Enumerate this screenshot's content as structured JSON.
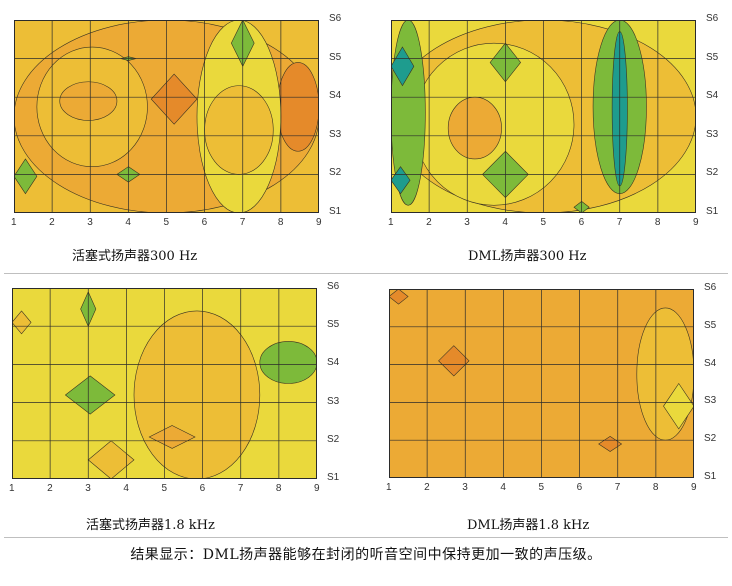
{
  "colors": {
    "orange": "#E58A2A",
    "orange_yellow": "#ECAA35",
    "yellow_orange": "#EDBE36",
    "yellow": "#EAD93C",
    "green": "#7DBA3A",
    "teal": "#1E9C8E",
    "line": "#3a3322"
  },
  "chart_data": [
    {
      "type": "heatmap",
      "id": "piston300",
      "caption": "活塞式扬声器300 Hz",
      "x_ticks": [
        "1",
        "2",
        "3",
        "4",
        "5",
        "6",
        "7",
        "8",
        "9"
      ],
      "y_ticks": [
        "S1",
        "S2",
        "S3",
        "S4",
        "S5",
        "S6"
      ],
      "base_level": "yellow_orange",
      "regions": [
        {
          "level": "orange_yellow",
          "x": [
            1,
            9
          ],
          "y": [
            1,
            6
          ]
        },
        {
          "level": "yellow_orange",
          "x": [
            1.6,
            4.5
          ],
          "y": [
            2.2,
            5.3
          ]
        },
        {
          "level": "orange_yellow",
          "x": [
            2.2,
            3.7
          ],
          "y": [
            3.4,
            4.4
          ]
        },
        {
          "level": "orange",
          "x": [
            4.6,
            5.8
          ],
          "y": [
            3.3,
            4.6
          ]
        },
        {
          "level": "orange",
          "x": [
            7.9,
            9
          ],
          "y": [
            2.6,
            4.9
          ]
        },
        {
          "level": "yellow",
          "x": [
            5.8,
            8.0
          ],
          "y": [
            1,
            6
          ]
        },
        {
          "level": "yellow_orange",
          "x": [
            6.0,
            7.8
          ],
          "y": [
            2.0,
            4.3
          ]
        },
        {
          "level": "green",
          "x": [
            6.7,
            7.3
          ],
          "y": [
            4.8,
            6
          ]
        },
        {
          "level": "green",
          "x": [
            1,
            1.6
          ],
          "y": [
            1.5,
            2.4
          ]
        },
        {
          "level": "green",
          "x": [
            3.7,
            4.3
          ],
          "y": [
            1.8,
            2.2
          ]
        },
        {
          "level": "green",
          "x": [
            3.8,
            4.2
          ],
          "y": [
            4.95,
            5.05
          ]
        }
      ]
    },
    {
      "type": "heatmap",
      "id": "dml300",
      "caption": "DML扬声器300 Hz",
      "x_ticks": [
        "1",
        "2",
        "3",
        "4",
        "5",
        "6",
        "7",
        "8",
        "9"
      ],
      "y_ticks": [
        "S1",
        "S2",
        "S3",
        "S4",
        "S5",
        "S6"
      ],
      "base_level": "yellow",
      "regions": [
        {
          "level": "yellow_orange",
          "x": [
            1,
            9
          ],
          "y": [
            1,
            6
          ]
        },
        {
          "level": "yellow",
          "x": [
            1.6,
            5.8
          ],
          "y": [
            1.2,
            5.4
          ]
        },
        {
          "level": "orange_yellow",
          "x": [
            2.5,
            3.9
          ],
          "y": [
            2.4,
            4.0
          ]
        },
        {
          "level": "green",
          "x": [
            1,
            1.9
          ],
          "y": [
            1.2,
            6
          ]
        },
        {
          "level": "teal",
          "x": [
            1,
            1.6
          ],
          "y": [
            4.3,
            5.3
          ]
        },
        {
          "level": "teal",
          "x": [
            1,
            1.5
          ],
          "y": [
            1.5,
            2.2
          ]
        },
        {
          "level": "green",
          "x": [
            3.6,
            4.4
          ],
          "y": [
            4.4,
            5.4
          ]
        },
        {
          "level": "green",
          "x": [
            3.4,
            4.6
          ],
          "y": [
            1.4,
            2.6
          ]
        },
        {
          "level": "green",
          "x": [
            6.3,
            7.7
          ],
          "y": [
            1.5,
            6
          ]
        },
        {
          "level": "teal",
          "x": [
            6.8,
            7.2
          ],
          "y": [
            1.7,
            5.7
          ]
        },
        {
          "level": "green",
          "x": [
            5.8,
            6.2
          ],
          "y": [
            1,
            1.3
          ]
        }
      ]
    },
    {
      "type": "heatmap",
      "id": "piston1800",
      "caption": "活塞式扬声器1.8 kHz",
      "x_ticks": [
        "1",
        "2",
        "3",
        "4",
        "5",
        "6",
        "7",
        "8",
        "9"
      ],
      "y_ticks": [
        "S1",
        "S2",
        "S3",
        "S4",
        "S5",
        "S6"
      ],
      "base_level": "yellow",
      "regions": [
        {
          "level": "yellow_orange",
          "x": [
            4.2,
            7.5
          ],
          "y": [
            1,
            5.4
          ]
        },
        {
          "level": "yellow_orange",
          "x": [
            3,
            4.2
          ],
          "y": [
            1,
            2
          ]
        },
        {
          "level": "yellow_orange",
          "x": [
            1,
            1.5
          ],
          "y": [
            4.8,
            5.4
          ]
        },
        {
          "level": "orange_yellow",
          "x": [
            4.6,
            5.8
          ],
          "y": [
            1.8,
            2.4
          ]
        },
        {
          "level": "green",
          "x": [
            2.4,
            3.7
          ],
          "y": [
            2.7,
            3.7
          ]
        },
        {
          "level": "green",
          "x": [
            7.5,
            9
          ],
          "y": [
            3.5,
            4.6
          ]
        },
        {
          "level": "green",
          "x": [
            2.8,
            3.2
          ],
          "y": [
            5.0,
            5.9
          ]
        }
      ]
    },
    {
      "type": "heatmap",
      "id": "dml1800",
      "caption": "DML扬声器1.8 kHz",
      "x_ticks": [
        "1",
        "2",
        "3",
        "4",
        "5",
        "6",
        "7",
        "8",
        "9"
      ],
      "y_ticks": [
        "S1",
        "S2",
        "S3",
        "S4",
        "S5",
        "S6"
      ],
      "base_level": "orange_yellow",
      "regions": [
        {
          "level": "yellow_orange",
          "x": [
            7.5,
            9
          ],
          "y": [
            2,
            5.5
          ]
        },
        {
          "level": "yellow",
          "x": [
            8.2,
            9
          ],
          "y": [
            2.3,
            3.5
          ]
        },
        {
          "level": "orange",
          "x": [
            2.3,
            3.1
          ],
          "y": [
            3.7,
            4.5
          ]
        },
        {
          "level": "orange",
          "x": [
            1,
            1.5
          ],
          "y": [
            5.6,
            6
          ]
        },
        {
          "level": "orange",
          "x": [
            6.5,
            7.1
          ],
          "y": [
            1.7,
            2.1
          ]
        }
      ]
    }
  ],
  "conclusion": "结果显示：DML扬声器能够在封闭的听音空间中保持更加一致的声压级。"
}
